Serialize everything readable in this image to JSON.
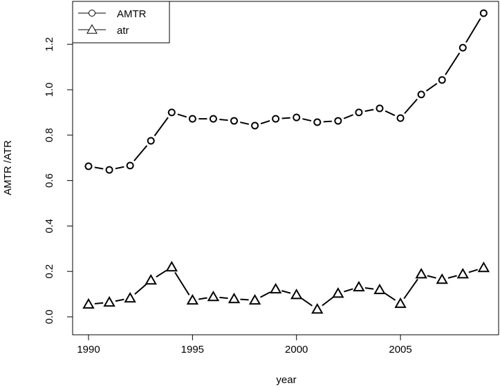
{
  "chart_data": {
    "type": "line",
    "x_label": "year",
    "y_label": "AMTR /ATR",
    "x": [
      1990,
      1991,
      1992,
      1993,
      1994,
      1995,
      1996,
      1997,
      1998,
      1999,
      2000,
      2001,
      2002,
      2003,
      2004,
      2005,
      2006,
      2007,
      2008,
      2009
    ],
    "series": [
      {
        "name": "AMTR",
        "color": "#000000",
        "marker": "circle",
        "values": [
          0.663,
          0.647,
          0.666,
          0.775,
          0.9,
          0.872,
          0.872,
          0.863,
          0.842,
          0.872,
          0.878,
          0.857,
          0.863,
          0.9,
          0.918,
          0.875,
          0.979,
          1.043,
          1.185,
          1.337
        ]
      },
      {
        "name": "atr",
        "color": "#000000",
        "marker": "triangle",
        "values": [
          0.055,
          0.064,
          0.082,
          0.161,
          0.219,
          0.073,
          0.088,
          0.079,
          0.073,
          0.122,
          0.097,
          0.033,
          0.103,
          0.131,
          0.119,
          0.058,
          0.188,
          0.164,
          0.188,
          0.216
        ]
      }
    ],
    "xlim": [
      1989.235,
      2009.72
    ],
    "ylim": [
      -0.079,
      1.389
    ],
    "xticks": [
      1990,
      1995,
      2000,
      2005
    ],
    "yticks": [
      {
        "value": 0,
        "label": "0.0"
      },
      {
        "value": 0.2,
        "label": "0.2"
      },
      {
        "value": 0.4,
        "label": "0.4"
      },
      {
        "value": 0.6,
        "label": "0.6"
      },
      {
        "value": 0.8,
        "label": "0.8"
      },
      {
        "value": 1,
        "label": "1.0"
      },
      {
        "value": 1.2,
        "label": "1.2"
      }
    ],
    "legend": "topleft",
    "grid": false
  }
}
